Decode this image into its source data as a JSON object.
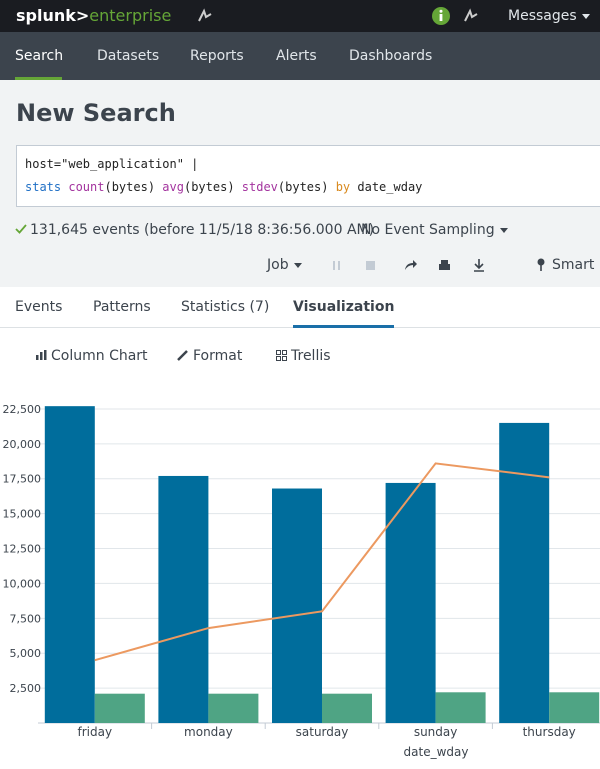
{
  "topbar": {
    "logo_brand": "splunk>",
    "logo_product": "enterprise",
    "messages": "Messages"
  },
  "nav": [
    "Search",
    "Datasets",
    "Reports",
    "Alerts",
    "Dashboards"
  ],
  "header": {
    "title": "New Search"
  },
  "search": {
    "line1": "host=\"web_application\" |",
    "line2": [
      {
        "text": "stats ",
        "color": "#1f6fc5"
      },
      {
        "text": "count",
        "color": "#a3339e"
      },
      {
        "text": "(bytes) ",
        "color": "#222222"
      },
      {
        "text": "avg",
        "color": "#a3339e"
      },
      {
        "text": "(bytes) ",
        "color": "#222222"
      },
      {
        "text": "stdev",
        "color": "#a3339e"
      },
      {
        "text": "(bytes) ",
        "color": "#222222"
      },
      {
        "text": "by ",
        "color": "#d98a1f"
      },
      {
        "text": "date_wday",
        "color": "#222222"
      }
    ]
  },
  "status": {
    "events": "131,645 events (before 11/5/18 8:36:56.000 AM)",
    "sampling": "No Event Sampling"
  },
  "toolbar": {
    "job": "Job",
    "smart": "Smart M"
  },
  "tabs": [
    "Events",
    "Patterns",
    "Statistics (7)",
    "Visualization"
  ],
  "viz_toolbar": [
    "Column Chart",
    "Format",
    "Trellis"
  ],
  "chart_data": {
    "type": "bar",
    "categories": [
      "friday",
      "monday",
      "saturday",
      "sunday",
      "thursday"
    ],
    "x_label": "date_wday",
    "series": [
      {
        "type": "bar",
        "color": "#006d9c",
        "values": [
          22700,
          17700,
          16800,
          17200,
          21500
        ]
      },
      {
        "type": "bar",
        "color": "#4fa484",
        "values": [
          2100,
          2100,
          2100,
          2200,
          2200
        ]
      },
      {
        "type": "line",
        "color": "#ec9960",
        "values": [
          4500,
          6800,
          8000,
          18600,
          17600
        ]
      }
    ],
    "ylim": [
      0,
      23500
    ],
    "yticks": [
      {
        "value": 2500,
        "label": "2,500"
      },
      {
        "value": 5000,
        "label": "5,000"
      },
      {
        "value": 7500,
        "label": "7,500"
      },
      {
        "value": 10000,
        "label": "10,000"
      },
      {
        "value": 12500,
        "label": "12,500"
      },
      {
        "value": 15000,
        "label": "15,000"
      },
      {
        "value": 17500,
        "label": "17,500"
      },
      {
        "value": 20000,
        "label": "20,000"
      },
      {
        "value": 22500,
        "label": "22,500"
      }
    ],
    "grid": true
  }
}
